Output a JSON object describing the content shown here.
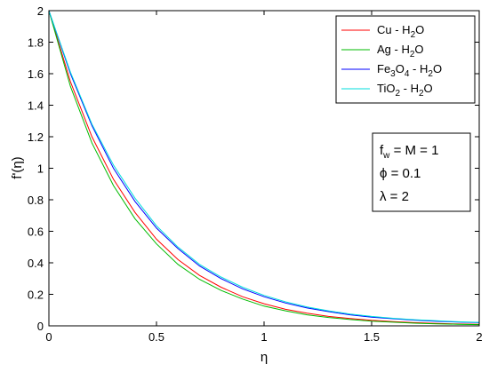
{
  "chart_data": {
    "type": "line",
    "title": "",
    "xlabel": "η",
    "ylabel": "f'(η)",
    "xlim": [
      0,
      2
    ],
    "ylim": [
      0,
      2
    ],
    "x_ticks": [
      "0",
      "0.5",
      "1",
      "1.5",
      "2"
    ],
    "y_ticks": [
      "0",
      "0.2",
      "0.4",
      "0.6",
      "0.8",
      "1",
      "1.2",
      "1.4",
      "1.6",
      "1.8",
      "2"
    ],
    "grid": false,
    "legend_position": "top-right",
    "x": [
      0,
      0.1,
      0.2,
      0.3,
      0.4,
      0.5,
      0.6,
      0.7,
      0.8,
      0.9,
      1.0,
      1.1,
      1.2,
      1.3,
      1.4,
      1.5,
      1.6,
      1.7,
      1.8,
      1.9,
      2.0
    ],
    "series": [
      {
        "name_parts": [
          [
            "Cu - H",
            "n"
          ],
          [
            "2",
            "sub"
          ],
          [
            "O",
            "n"
          ]
        ],
        "color": "#ff0000",
        "values": [
          2.0,
          1.55,
          1.2,
          0.93,
          0.72,
          0.55,
          0.42,
          0.32,
          0.245,
          0.185,
          0.14,
          0.105,
          0.08,
          0.06,
          0.046,
          0.035,
          0.027,
          0.02,
          0.016,
          0.012,
          0.01
        ]
      },
      {
        "name_parts": [
          [
            "Ag - H",
            "n"
          ],
          [
            "2",
            "sub"
          ],
          [
            "O",
            "n"
          ]
        ],
        "color": "#00bb00",
        "values": [
          2.0,
          1.52,
          1.16,
          0.89,
          0.68,
          0.52,
          0.39,
          0.295,
          0.225,
          0.17,
          0.125,
          0.095,
          0.07,
          0.053,
          0.04,
          0.03,
          0.023,
          0.017,
          0.013,
          0.01,
          0.008
        ]
      },
      {
        "name_parts": [
          [
            "Fe",
            "n"
          ],
          [
            "3",
            "sub"
          ],
          [
            "O",
            "n"
          ],
          [
            "4",
            "sub"
          ],
          [
            " - H",
            "n"
          ],
          [
            "2",
            "sub"
          ],
          [
            "O",
            "n"
          ]
        ],
        "color": "#0000ff",
        "values": [
          2.0,
          1.6,
          1.27,
          1.0,
          0.79,
          0.62,
          0.49,
          0.38,
          0.3,
          0.235,
          0.185,
          0.145,
          0.113,
          0.09,
          0.07,
          0.055,
          0.045,
          0.036,
          0.029,
          0.024,
          0.02
        ]
      },
      {
        "name_parts": [
          [
            "TiO",
            "n"
          ],
          [
            "2",
            "sub"
          ],
          [
            " - H",
            "n"
          ],
          [
            "2",
            "sub"
          ],
          [
            "O",
            "n"
          ]
        ],
        "color": "#00dddd",
        "values": [
          2.0,
          1.61,
          1.28,
          1.02,
          0.81,
          0.635,
          0.5,
          0.39,
          0.31,
          0.245,
          0.193,
          0.152,
          0.12,
          0.095,
          0.075,
          0.06,
          0.048,
          0.039,
          0.032,
          0.026,
          0.022
        ]
      }
    ],
    "annotations": [
      {
        "parts": [
          [
            "f",
            "n"
          ],
          [
            "w",
            "sub"
          ],
          [
            " = M = 1",
            "n"
          ]
        ]
      },
      {
        "parts": [
          [
            "ϕ = 0.1",
            "n"
          ]
        ]
      },
      {
        "parts": [
          [
            "λ = 2",
            "n"
          ]
        ]
      }
    ]
  }
}
